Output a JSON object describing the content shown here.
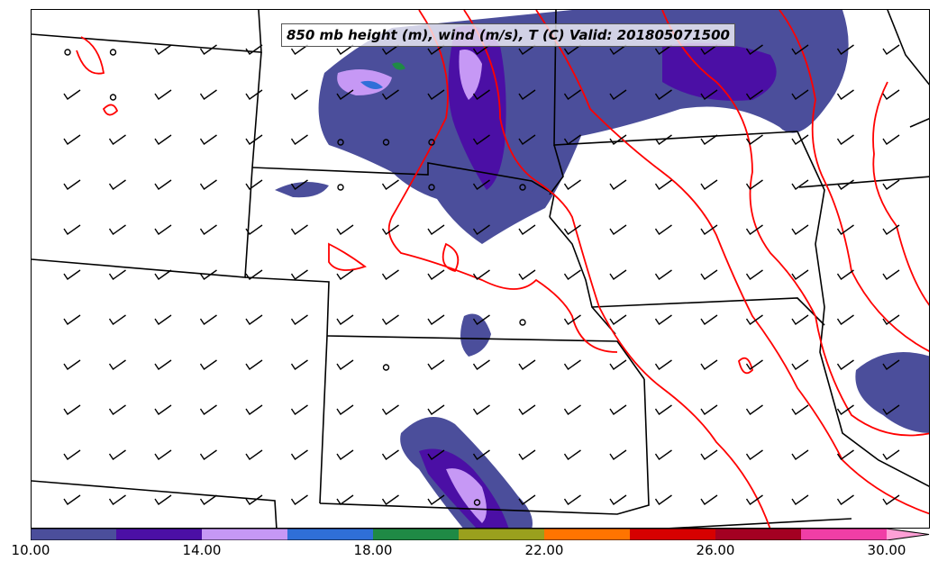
{
  "title": "850 mb height (m), wind (m/s), T (C) Valid: 201805071500",
  "legend": {
    "colors": [
      "#4b4e9b",
      "#4b0fa5",
      "#c698f5",
      "#2f6fd8",
      "#1f8a45",
      "#9aa01d",
      "#ff7400",
      "#d60000",
      "#a30022",
      "#f03ea6",
      "#ffa0d6"
    ],
    "tick_labels": [
      "10.00",
      "14.00",
      "18.00",
      "22.00",
      "26.00",
      "30.00"
    ]
  },
  "colors": {
    "borders": "#000000",
    "contours": "#ff0000",
    "frame": "#000000"
  }
}
